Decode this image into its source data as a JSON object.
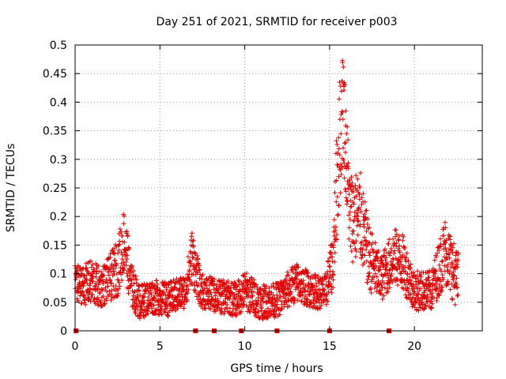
{
  "chart_data": {
    "type": "scatter",
    "title": "Day 251 of 2021, SRMTID for receiver p003",
    "xlabel": "GPS time / hours",
    "ylabel": "SRMTID / TECUs",
    "xlim": [
      0,
      24
    ],
    "ylim": [
      0,
      0.5
    ],
    "x_ticks": [
      0,
      5,
      10,
      15,
      20
    ],
    "y_ticks": [
      0,
      0.05,
      0.1,
      0.15,
      0.2,
      0.25,
      0.3,
      0.35,
      0.4,
      0.45,
      0.5
    ],
    "x_tick_labels": [
      "0",
      "5",
      "10",
      "15",
      "20"
    ],
    "y_tick_labels": [
      "0",
      "0.05",
      "0.1",
      "0.15",
      "0.2",
      "0.25",
      "0.3",
      "0.35",
      "0.4",
      "0.45",
      "0.5"
    ],
    "grid": true,
    "marker": "+",
    "series_color": "#e00000",
    "envelope": [
      {
        "x": 0.0,
        "y": 0.085,
        "spread": 0.03
      },
      {
        "x": 0.5,
        "y": 0.08,
        "spread": 0.035
      },
      {
        "x": 1.0,
        "y": 0.085,
        "spread": 0.04
      },
      {
        "x": 1.5,
        "y": 0.075,
        "spread": 0.035
      },
      {
        "x": 2.0,
        "y": 0.09,
        "spread": 0.04
      },
      {
        "x": 2.5,
        "y": 0.11,
        "spread": 0.05
      },
      {
        "x": 2.9,
        "y": 0.16,
        "spread": 0.06
      },
      {
        "x": 3.3,
        "y": 0.08,
        "spread": 0.04
      },
      {
        "x": 3.8,
        "y": 0.05,
        "spread": 0.03
      },
      {
        "x": 4.5,
        "y": 0.06,
        "spread": 0.03
      },
      {
        "x": 5.5,
        "y": 0.055,
        "spread": 0.03
      },
      {
        "x": 6.5,
        "y": 0.07,
        "spread": 0.03
      },
      {
        "x": 6.9,
        "y": 0.13,
        "spread": 0.05
      },
      {
        "x": 7.4,
        "y": 0.07,
        "spread": 0.03
      },
      {
        "x": 8.5,
        "y": 0.06,
        "spread": 0.03
      },
      {
        "x": 9.5,
        "y": 0.055,
        "spread": 0.03
      },
      {
        "x": 10.0,
        "y": 0.07,
        "spread": 0.035
      },
      {
        "x": 11.0,
        "y": 0.05,
        "spread": 0.03
      },
      {
        "x": 12.0,
        "y": 0.055,
        "spread": 0.03
      },
      {
        "x": 13.0,
        "y": 0.085,
        "spread": 0.035
      },
      {
        "x": 14.0,
        "y": 0.07,
        "spread": 0.03
      },
      {
        "x": 14.7,
        "y": 0.065,
        "spread": 0.03
      },
      {
        "x": 15.2,
        "y": 0.12,
        "spread": 0.05
      },
      {
        "x": 15.5,
        "y": 0.3,
        "spread": 0.12
      },
      {
        "x": 15.8,
        "y": 0.4,
        "spread": 0.1
      },
      {
        "x": 16.2,
        "y": 0.2,
        "spread": 0.08
      },
      {
        "x": 16.8,
        "y": 0.2,
        "spread": 0.08
      },
      {
        "x": 17.3,
        "y": 0.13,
        "spread": 0.06
      },
      {
        "x": 18.0,
        "y": 0.09,
        "spread": 0.04
      },
      {
        "x": 18.8,
        "y": 0.13,
        "spread": 0.05
      },
      {
        "x": 19.3,
        "y": 0.12,
        "spread": 0.05
      },
      {
        "x": 20.0,
        "y": 0.07,
        "spread": 0.035
      },
      {
        "x": 21.0,
        "y": 0.07,
        "spread": 0.035
      },
      {
        "x": 21.8,
        "y": 0.14,
        "spread": 0.06
      },
      {
        "x": 22.5,
        "y": 0.09,
        "spread": 0.05
      }
    ],
    "sample_step_hours": 0.01,
    "end_hour": 22.6,
    "gap_markers_x": [
      0.05,
      7.1,
      8.2,
      9.8,
      11.9,
      15.0,
      18.5
    ]
  }
}
